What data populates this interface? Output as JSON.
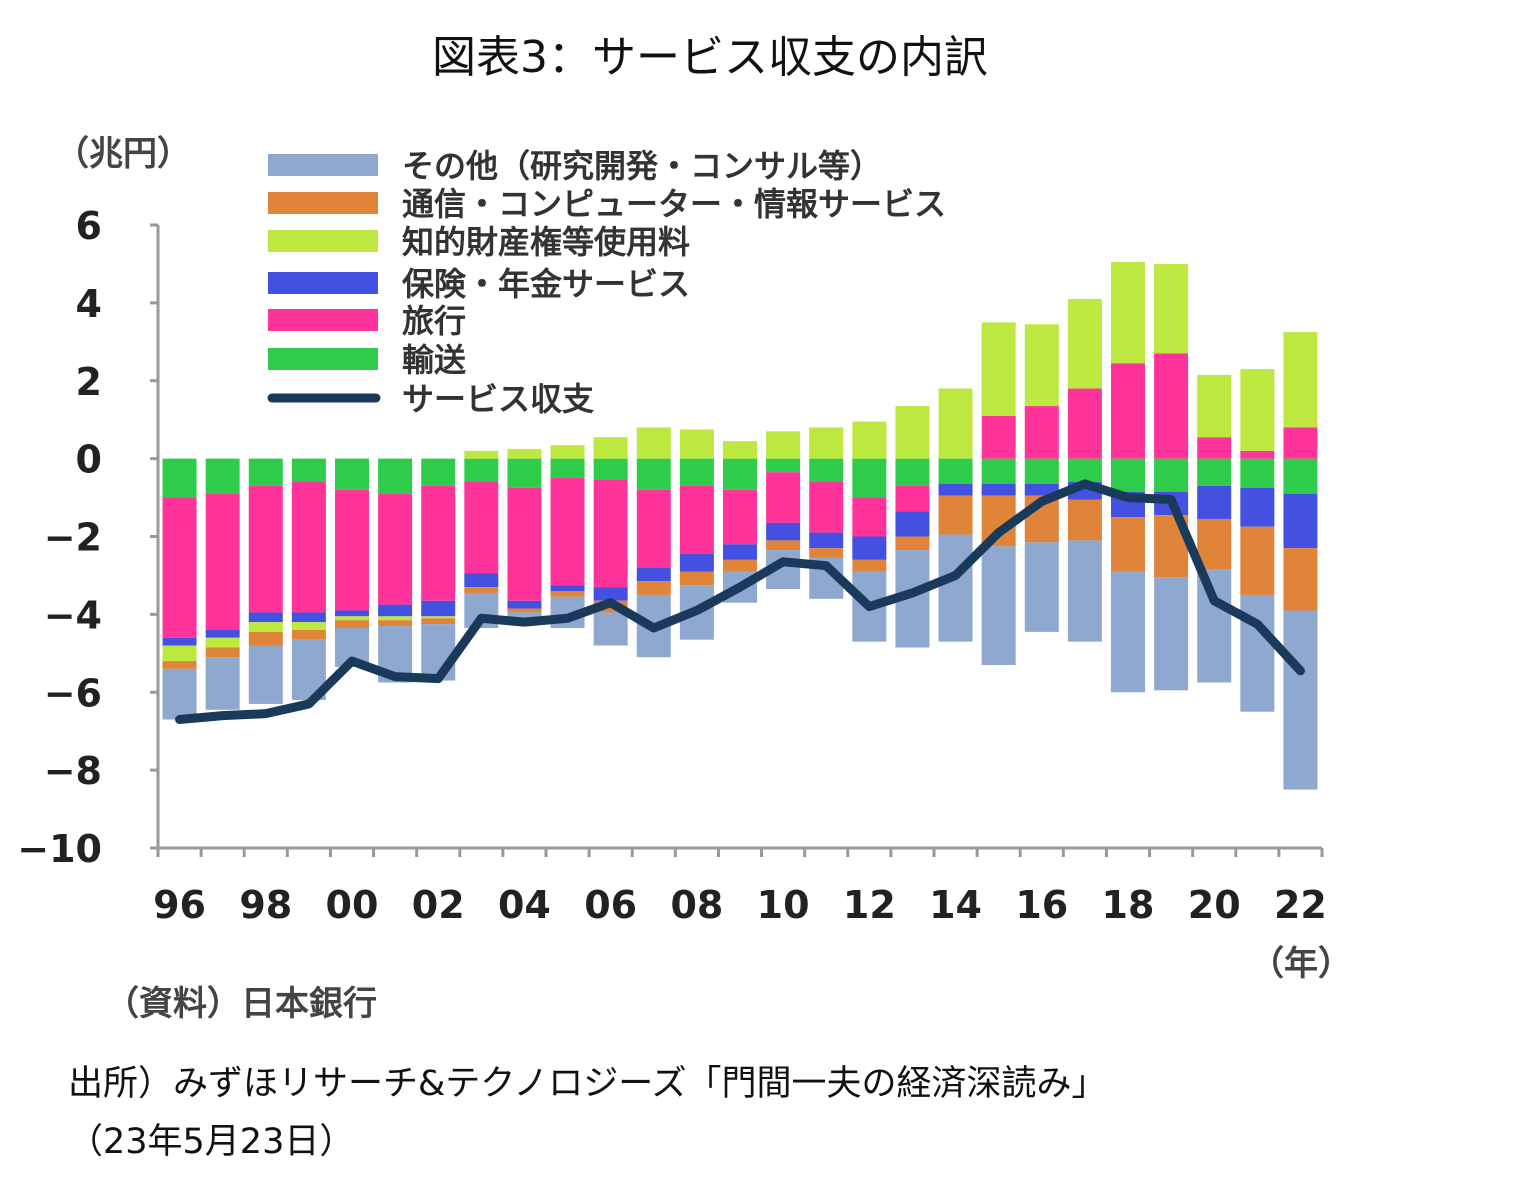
{
  "title": "図表3：サービス収支の内訳",
  "unit_label": "（兆円）",
  "year_label": "（年）",
  "source_label": "（資料）日本銀行",
  "footnote": {
    "line1": "出所）みずほリサーチ&テクノロジーズ「門間一夫の経済深読み」",
    "line2": "（23年5月23日）"
  },
  "chart_data": {
    "type": "bar",
    "stacked": true,
    "title": "図表3：サービス収支の内訳",
    "ylabel": "（兆円）",
    "xlabel": "（年）",
    "ylim": [
      -10,
      6
    ],
    "yticks": [
      "6",
      "4",
      "2",
      "0",
      "−2",
      "−4",
      "−6",
      "−8",
      "−10"
    ],
    "ytick_values": [
      6,
      4,
      2,
      0,
      -2,
      -4,
      -6,
      -8,
      -10
    ],
    "categories": [
      "96",
      "97",
      "98",
      "99",
      "00",
      "01",
      "02",
      "03",
      "04",
      "05",
      "06",
      "07",
      "08",
      "09",
      "10",
      "11",
      "12",
      "13",
      "14",
      "15",
      "16",
      "17",
      "18",
      "19",
      "20",
      "21",
      "22"
    ],
    "xtick_labels": [
      "96",
      "98",
      "00",
      "02",
      "04",
      "06",
      "08",
      "10",
      "12",
      "14",
      "16",
      "18",
      "20",
      "22"
    ],
    "legend_placement": "top-left",
    "series": [
      {
        "name": "輸送",
        "color": "#2ECC4A",
        "values": [
          -1.0,
          -0.9,
          -0.7,
          -0.6,
          -0.8,
          -0.9,
          -0.7,
          -0.6,
          -0.75,
          -0.5,
          -0.55,
          -0.8,
          -0.7,
          -0.8,
          -0.35,
          -0.6,
          -1.0,
          -0.7,
          -0.65,
          -0.65,
          -0.65,
          -0.6,
          -0.85,
          -0.85,
          -0.7,
          -0.75,
          -0.9
        ]
      },
      {
        "name": "旅行",
        "color": "#FF3399",
        "values": [
          -3.6,
          -3.5,
          -3.25,
          -3.35,
          -3.1,
          -2.85,
          -2.95,
          -2.35,
          -2.9,
          -2.75,
          -2.75,
          -2.0,
          -1.75,
          -1.4,
          -1.3,
          -1.3,
          -1.0,
          -0.65,
          0,
          1.1,
          1.35,
          1.8,
          2.45,
          2.7,
          0.55,
          0.2,
          0.8
        ]
      },
      {
        "name": "保険・年金サービス",
        "color": "#4450E0",
        "values": [
          -0.2,
          -0.2,
          -0.25,
          -0.25,
          -0.15,
          -0.3,
          -0.4,
          -0.35,
          -0.2,
          -0.15,
          -0.35,
          -0.35,
          -0.45,
          -0.4,
          -0.45,
          -0.4,
          -0.6,
          -0.65,
          -0.3,
          -0.3,
          -0.3,
          -0.45,
          -0.65,
          -0.6,
          -0.85,
          -1.0,
          -1.4
        ]
      },
      {
        "name": "知的財産権等使用料",
        "color": "#BDE840",
        "values": [
          -0.4,
          -0.25,
          -0.25,
          -0.2,
          -0.1,
          -0.1,
          -0.05,
          0.2,
          0.25,
          0.35,
          0.55,
          0.8,
          0.75,
          0.45,
          0.7,
          0.8,
          0.95,
          1.35,
          1.8,
          2.4,
          2.1,
          2.3,
          2.6,
          2.3,
          1.6,
          2.1,
          2.45
        ]
      },
      {
        "name": "通信・コンピューター・情報サービス",
        "color": "#E0843A",
        "values": [
          -0.2,
          -0.25,
          -0.35,
          -0.25,
          -0.2,
          -0.15,
          -0.15,
          -0.15,
          -0.1,
          -0.15,
          -0.3,
          -0.35,
          -0.35,
          -0.3,
          -0.25,
          -0.25,
          -0.3,
          -0.35,
          -1.0,
          -1.3,
          -1.2,
          -1.05,
          -1.4,
          -1.6,
          -1.3,
          -1.75,
          -1.6
        ]
      },
      {
        "name": "その他（研究開発・コンサル等）",
        "color": "#8FA8D0",
        "values": [
          -1.3,
          -1.35,
          -1.5,
          -1.55,
          -1.0,
          -1.45,
          -1.45,
          -0.9,
          -0.3,
          -0.8,
          -0.85,
          -1.6,
          -1.4,
          -0.8,
          -1.0,
          -1.05,
          -1.8,
          -2.5,
          -2.75,
          -3.05,
          -2.3,
          -2.6,
          -3.1,
          -2.9,
          -2.9,
          -3.0,
          -4.6
        ]
      }
    ],
    "line": {
      "name": "サービス収支",
      "color": "#1A3A5C",
      "values": [
        -6.7,
        -6.6,
        -6.55,
        -6.3,
        -5.2,
        -5.6,
        -5.65,
        -4.1,
        -4.2,
        -4.1,
        -3.7,
        -4.35,
        -3.9,
        -3.3,
        -2.65,
        -2.75,
        -3.8,
        -3.45,
        -3.0,
        -1.9,
        -1.1,
        -0.65,
        -1.0,
        -1.05,
        -3.65,
        -4.25,
        -5.45
      ]
    },
    "legend": [
      {
        "label": "その他（研究開発・コンサル等）",
        "color": "#8FA8D0",
        "kind": "bar"
      },
      {
        "label": "通信・コンピューター・情報サービス",
        "color": "#E0843A",
        "kind": "bar"
      },
      {
        "label": "知的財産権等使用料",
        "color": "#BDE840",
        "kind": "bar"
      },
      {
        "label": "保険・年金サービス",
        "color": "#4450E0",
        "kind": "bar"
      },
      {
        "label": "旅行",
        "color": "#FF3399",
        "kind": "bar"
      },
      {
        "label": "輸送",
        "color": "#2ECC4A",
        "kind": "bar"
      },
      {
        "label": "サービス収支",
        "color": "#1A3A5C",
        "kind": "line"
      }
    ]
  }
}
